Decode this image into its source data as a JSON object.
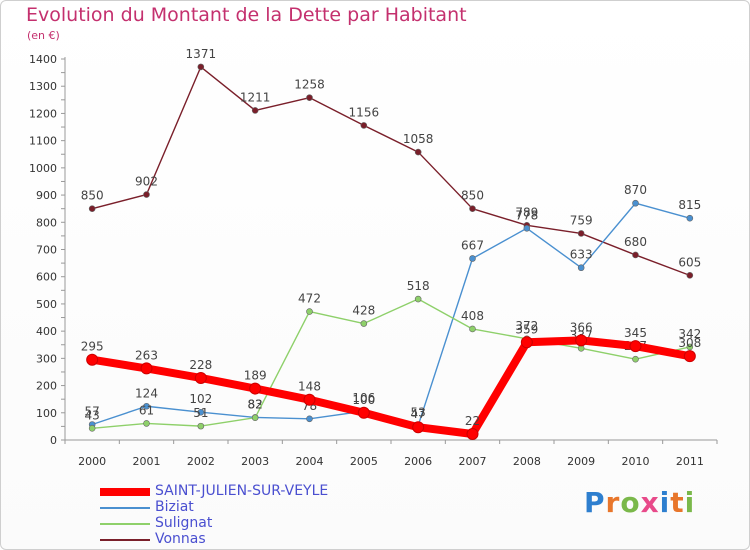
{
  "header": {
    "title": "Evolution du Montant de la Dette par Habitant",
    "subtitle": "(en €)"
  },
  "logo": {
    "text": "Proxiti",
    "letter_colors": [
      "#2e7fcf",
      "#e8762b",
      "#7ab84a",
      "#e84a8a",
      "#2e7fcf",
      "#e8762b",
      "#7ab84a"
    ]
  },
  "chart_data": {
    "type": "line",
    "categories": [
      "2000",
      "2001",
      "2002",
      "2003",
      "2004",
      "2005",
      "2006",
      "2007",
      "2008",
      "2009",
      "2010",
      "2011"
    ],
    "ylim": [
      0,
      1400
    ],
    "yticks": [
      0,
      100,
      200,
      300,
      400,
      500,
      600,
      700,
      800,
      900,
      1000,
      1100,
      1200,
      1300,
      1400
    ],
    "grid": "none",
    "legend_position": "bottom-left",
    "series": [
      {
        "name": "Vonnas",
        "color": "#7a1f2a",
        "values": [
          850,
          902,
          1371,
          1211,
          1258,
          1156,
          1058,
          850,
          789,
          759,
          680,
          605
        ],
        "labels": [
          "850",
          "902",
          "1371",
          "1211",
          "1258",
          "1156",
          "1058",
          "850",
          "789",
          "759",
          "680",
          "605"
        ]
      },
      {
        "name": "Biziat",
        "color": "#4a90d0",
        "values": [
          57,
          124,
          102,
          83,
          78,
          106,
          53,
          667,
          778,
          633,
          870,
          815
        ],
        "labels": [
          "57",
          "124",
          "102",
          "83",
          "78",
          "106",
          "53",
          "667",
          "778",
          "633",
          "870",
          "815"
        ]
      },
      {
        "name": "Sulignat",
        "color": "#8ed06a",
        "values": [
          43,
          61,
          51,
          82,
          472,
          428,
          518,
          408,
          372,
          337,
          297,
          342
        ],
        "labels": [
          "43",
          "61",
          "51",
          "82",
          "472",
          "428",
          "518",
          "408",
          "372",
          "337",
          "297",
          "342"
        ]
      },
      {
        "name": "SAINT-JULIEN-SUR-VEYLE",
        "color": "#ff0000",
        "values": [
          295,
          263,
          228,
          189,
          148,
          100,
          47,
          22,
          359,
          366,
          345,
          308
        ],
        "labels": [
          "295",
          "263",
          "228",
          "189",
          "148",
          "100",
          "47",
          "22",
          "359",
          "366",
          "345",
          "308"
        ]
      }
    ],
    "legend": [
      "SAINT-JULIEN-SUR-VEYLE",
      "Biziat",
      "Sulignat",
      "Vonnas"
    ]
  }
}
